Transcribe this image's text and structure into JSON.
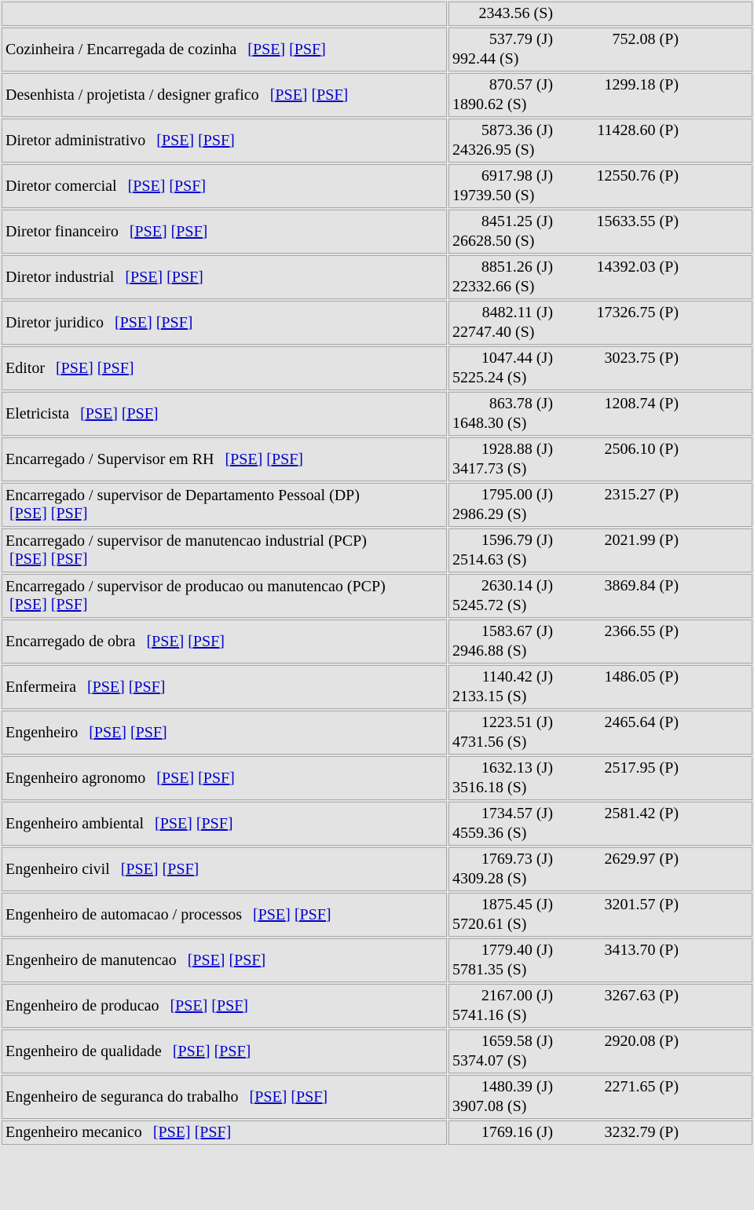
{
  "links": {
    "pse": "[PSE]",
    "psf": "[PSF]"
  },
  "rows": [
    {
      "title": "",
      "j": "",
      "p": "",
      "s": "2343.56 (S)",
      "titleEmpty": true
    },
    {
      "title": "Cozinheira / Encarregada de cozinha",
      "j": "537.79 (J)",
      "p": "752.08 (P)",
      "s": "992.44 (S)"
    },
    {
      "title": "Desenhista / projetista / designer grafico",
      "j": "870.57 (J)",
      "p": "1299.18 (P)",
      "s": "1890.62 (S)"
    },
    {
      "title": "Diretor administrativo",
      "j": "5873.36 (J)",
      "p": "11428.60 (P)",
      "s": "24326.95 (S)"
    },
    {
      "title": "Diretor comercial",
      "j": "6917.98 (J)",
      "p": "12550.76 (P)",
      "s": "19739.50 (S)"
    },
    {
      "title": "Diretor financeiro",
      "j": "8451.25 (J)",
      "p": "15633.55 (P)",
      "s": "26628.50 (S)"
    },
    {
      "title": "Diretor industrial",
      "j": "8851.26 (J)",
      "p": "14392.03 (P)",
      "s": "22332.66 (S)"
    },
    {
      "title": "Diretor juridico",
      "j": "8482.11 (J)",
      "p": "17326.75 (P)",
      "s": "22747.40 (S)"
    },
    {
      "title": "Editor",
      "j": "1047.44 (J)",
      "p": "3023.75 (P)",
      "s": "5225.24 (S)"
    },
    {
      "title": "Eletricista",
      "j": "863.78 (J)",
      "p": "1208.74 (P)",
      "s": "1648.30 (S)"
    },
    {
      "title": "Encarregado / Supervisor em RH",
      "j": "1928.88 (J)",
      "p": "2506.10 (P)",
      "s": "3417.73 (S)"
    },
    {
      "title": "Encarregado / supervisor de Departamento Pessoal (DP)",
      "j": "1795.00 (J)",
      "p": "2315.27 (P)",
      "s": "2986.29 (S)",
      "linksNewline": true
    },
    {
      "title": "Encarregado / supervisor de manutencao industrial (PCP)",
      "j": "1596.79 (J)",
      "p": "2021.99 (P)",
      "s": "2514.63 (S)",
      "linksNewline": true
    },
    {
      "title": "Encarregado / supervisor de producao ou manutencao (PCP)",
      "j": "2630.14 (J)",
      "p": "3869.84 (P)",
      "s": "5245.72 (S)",
      "linksNewline": true
    },
    {
      "title": "Encarregado de obra",
      "j": "1583.67 (J)",
      "p": "2366.55 (P)",
      "s": "2946.88 (S)"
    },
    {
      "title": "Enfermeira",
      "j": "1140.42 (J)",
      "p": "1486.05 (P)",
      "s": "2133.15 (S)"
    },
    {
      "title": "Engenheiro",
      "j": "1223.51 (J)",
      "p": "2465.64 (P)",
      "s": "4731.56 (S)"
    },
    {
      "title": "Engenheiro agronomo",
      "j": "1632.13 (J)",
      "p": "2517.95 (P)",
      "s": "3516.18 (S)"
    },
    {
      "title": "Engenheiro ambiental",
      "j": "1734.57 (J)",
      "p": "2581.42 (P)",
      "s": "4559.36 (S)"
    },
    {
      "title": "Engenheiro civil",
      "j": "1769.73 (J)",
      "p": "2629.97 (P)",
      "s": "4309.28 (S)"
    },
    {
      "title": "Engenheiro de automacao / processos",
      "j": "1875.45 (J)",
      "p": "3201.57 (P)",
      "s": "5720.61 (S)"
    },
    {
      "title": "Engenheiro de manutencao",
      "j": "1779.40 (J)",
      "p": "3413.70 (P)",
      "s": "5781.35 (S)"
    },
    {
      "title": "Engenheiro de producao",
      "j": "2167.00 (J)",
      "p": "3267.63 (P)",
      "s": "5741.16 (S)"
    },
    {
      "title": "Engenheiro de qualidade",
      "j": "1659.58 (J)",
      "p": "2920.08 (P)",
      "s": "5374.07 (S)"
    },
    {
      "title": "Engenheiro de seguranca do trabalho",
      "j": "1480.39 (J)",
      "p": "2271.65 (P)",
      "s": "3907.08 (S)"
    },
    {
      "title": "Engenheiro mecanico",
      "j": "1769.16 (J)",
      "p": "3232.79 (P)",
      "s": "",
      "lastPartial": true
    }
  ]
}
